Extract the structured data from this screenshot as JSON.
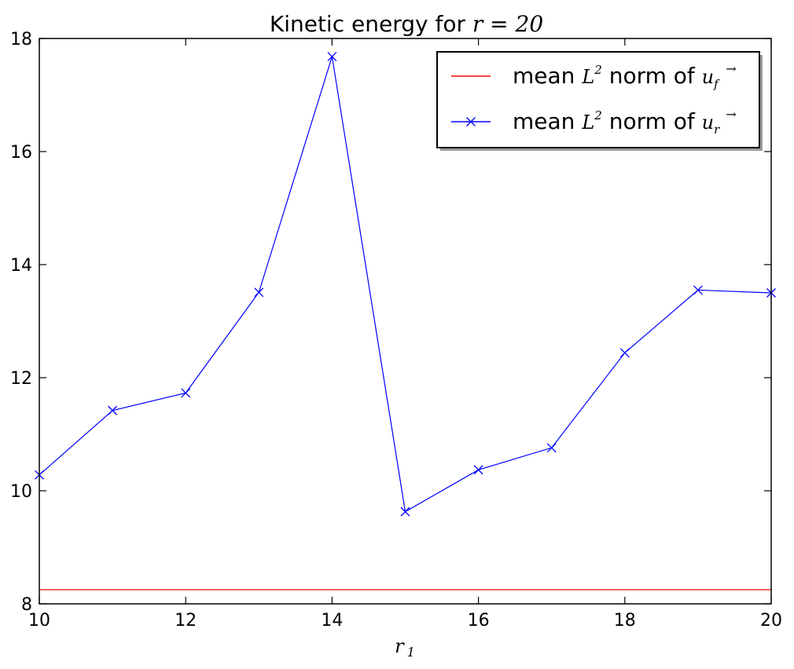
{
  "chart_data": {
    "type": "line",
    "title_prefix": "Kinetic energy for ",
    "title_math": "r = 20",
    "xlabel": "r",
    "xlabel_sub": "1",
    "ylabel": "",
    "xlim": [
      10,
      20
    ],
    "ylim": [
      8,
      18
    ],
    "xticks": [
      10,
      12,
      14,
      16,
      18,
      20
    ],
    "yticks": [
      8,
      10,
      12,
      14,
      16,
      18
    ],
    "grid": false,
    "legend_position": "top-right",
    "series": [
      {
        "name_prefix": "mean ",
        "name_math": "L",
        "name_sup": "2",
        "name_mid": " norm of ",
        "name_vec": "u",
        "name_sub": "f",
        "color": "#ff0000",
        "style": "line",
        "x": [
          10,
          20
        ],
        "values": [
          8.25,
          8.25
        ]
      },
      {
        "name_prefix": "mean ",
        "name_math": "L",
        "name_sup": "2",
        "name_mid": " norm of ",
        "name_vec": "u",
        "name_sub": "r",
        "color": "#0000ff",
        "style": "line-x-marker",
        "x": [
          10,
          11,
          12,
          13,
          14,
          15,
          16,
          17,
          18,
          19,
          20
        ],
        "values": [
          10.28,
          11.42,
          11.73,
          13.51,
          17.68,
          9.63,
          10.37,
          10.76,
          12.44,
          13.55,
          13.5
        ]
      }
    ]
  }
}
